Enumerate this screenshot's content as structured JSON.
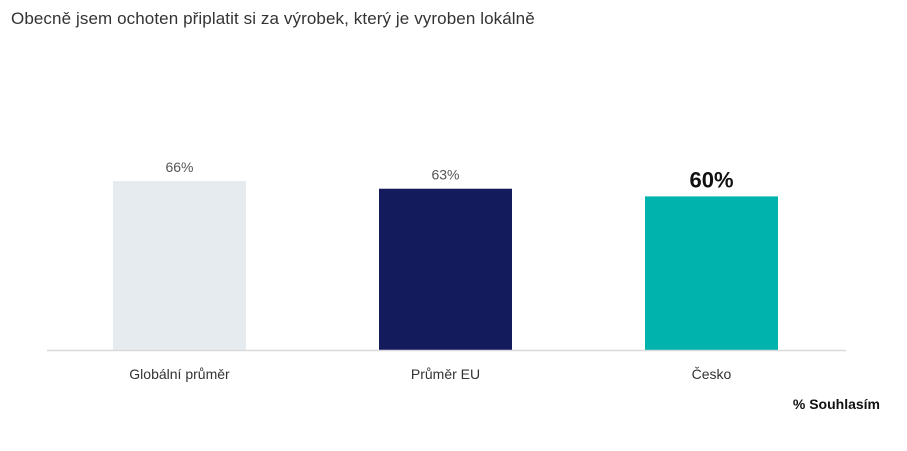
{
  "chart_data": {
    "type": "bar",
    "title": "Obecně jsem ochoten připlatit si za výrobek, který je vyroben lokálně",
    "categories": [
      "Globální průměr",
      "Průměr EU",
      "Česko"
    ],
    "values": [
      66,
      63,
      60
    ],
    "value_labels": [
      "66%",
      "63%",
      "60%"
    ],
    "unit": "%",
    "series_label": "% Souhlasím",
    "colors": [
      "#e6ebef",
      "#141b5c",
      "#00b3ad"
    ],
    "highlight_index": 2,
    "ylim": [
      0,
      100
    ],
    "grid": false,
    "axis_line_color": "#d9d9d9"
  }
}
